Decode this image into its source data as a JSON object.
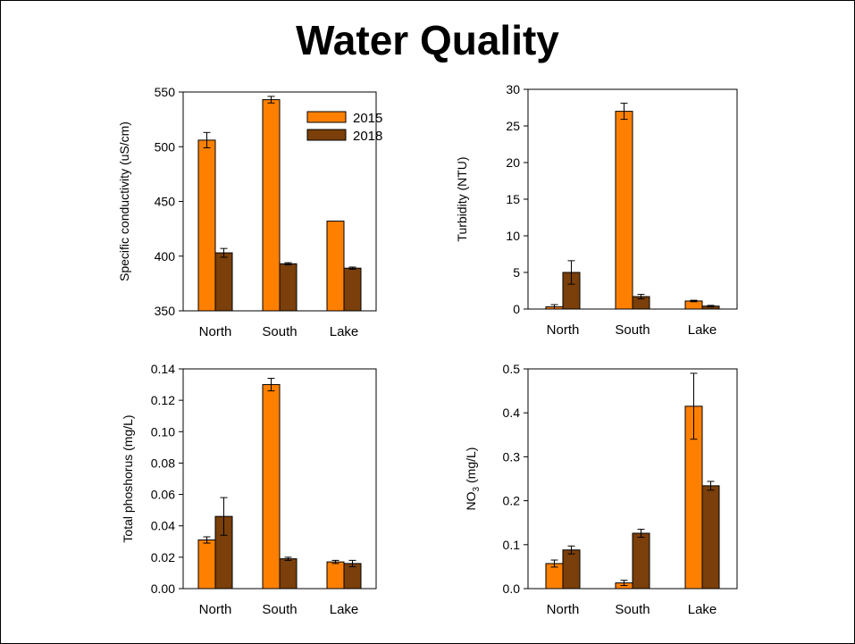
{
  "slide": {
    "title": "Water Quality"
  },
  "colors": {
    "2015": "#ff8000",
    "2018": "#7a3f0a"
  },
  "legend": [
    "2015",
    "2018"
  ],
  "chart_data": [
    {
      "type": "bar",
      "categories": [
        "North",
        "South",
        "Lake"
      ],
      "ylabel": "Specific conductivity (uS/cm)",
      "ylim": [
        350,
        550
      ],
      "yticks": [
        "350",
        "400",
        "450",
        "500",
        "550"
      ],
      "legend_placement": "top-right",
      "series": [
        {
          "name": "2015",
          "values": [
            506,
            543,
            432
          ],
          "errors": [
            7,
            3,
            0
          ]
        },
        {
          "name": "2018",
          "values": [
            403,
            393,
            389
          ],
          "errors": [
            4,
            1,
            1
          ]
        }
      ]
    },
    {
      "type": "bar",
      "categories": [
        "North",
        "South",
        "Lake"
      ],
      "ylabel": "Turbidity (NTU)",
      "ylim": [
        0,
        30
      ],
      "yticks": [
        "0",
        "5",
        "10",
        "15",
        "20",
        "25",
        "30"
      ],
      "series": [
        {
          "name": "2015",
          "values": [
            0.3,
            27.0,
            1.1
          ],
          "errors": [
            0.3,
            1.1,
            0.1
          ]
        },
        {
          "name": "2018",
          "values": [
            5.0,
            1.7,
            0.4
          ],
          "errors": [
            1.6,
            0.3,
            0.1
          ]
        }
      ]
    },
    {
      "type": "bar",
      "categories": [
        "North",
        "South",
        "Lake"
      ],
      "ylabel": "Total phoshorus (mg/L)",
      "ylim": [
        0,
        0.14
      ],
      "yticks": [
        "0.00",
        "0.02",
        "0.04",
        "0.06",
        "0.08",
        "0.10",
        "0.12",
        "0.14"
      ],
      "series": [
        {
          "name": "2015",
          "values": [
            0.031,
            0.13,
            0.017
          ],
          "errors": [
            0.002,
            0.004,
            0.001
          ]
        },
        {
          "name": "2018",
          "values": [
            0.046,
            0.019,
            0.016
          ],
          "errors": [
            0.012,
            0.001,
            0.002
          ]
        }
      ]
    },
    {
      "type": "bar",
      "categories": [
        "North",
        "South",
        "Lake"
      ],
      "ylabel": "NO3 (mg/L)",
      "ylabel_parts": {
        "main": "NO",
        "sub": "3",
        "unit": " (mg/L)"
      },
      "ylim": [
        0,
        0.5
      ],
      "yticks": [
        "0.0",
        "0.1",
        "0.2",
        "0.3",
        "0.4",
        "0.5"
      ],
      "series": [
        {
          "name": "2015",
          "values": [
            0.057,
            0.013,
            0.415
          ],
          "errors": [
            0.008,
            0.006,
            0.075
          ]
        },
        {
          "name": "2018",
          "values": [
            0.088,
            0.126,
            0.234
          ],
          "errors": [
            0.009,
            0.009,
            0.01
          ]
        }
      ]
    }
  ]
}
